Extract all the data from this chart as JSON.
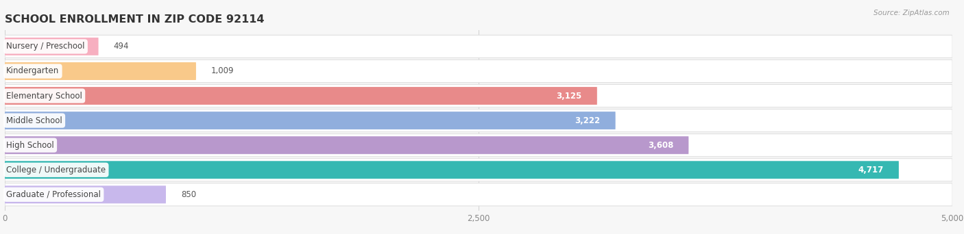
{
  "title": "SCHOOL ENROLLMENT IN ZIP CODE 92114",
  "source": "Source: ZipAtlas.com",
  "categories": [
    "Nursery / Preschool",
    "Kindergarten",
    "Elementary School",
    "Middle School",
    "High School",
    "College / Undergraduate",
    "Graduate / Professional"
  ],
  "values": [
    494,
    1009,
    3125,
    3222,
    3608,
    4717,
    850
  ],
  "bar_colors": [
    "#f7afc0",
    "#f9c98a",
    "#e88a8a",
    "#90aedd",
    "#b898cc",
    "#35b8b2",
    "#c8b8ec"
  ],
  "xlim": [
    0,
    5000
  ],
  "xticks": [
    0,
    2500,
    5000
  ],
  "xtick_labels": [
    "0",
    "2,500",
    "5,000"
  ],
  "background_color": "#f7f7f7",
  "row_bg_color": "#ffffff",
  "row_border_color": "#e0e0e0",
  "title_fontsize": 11.5,
  "label_fontsize": 8.5,
  "value_fontsize": 8.5
}
